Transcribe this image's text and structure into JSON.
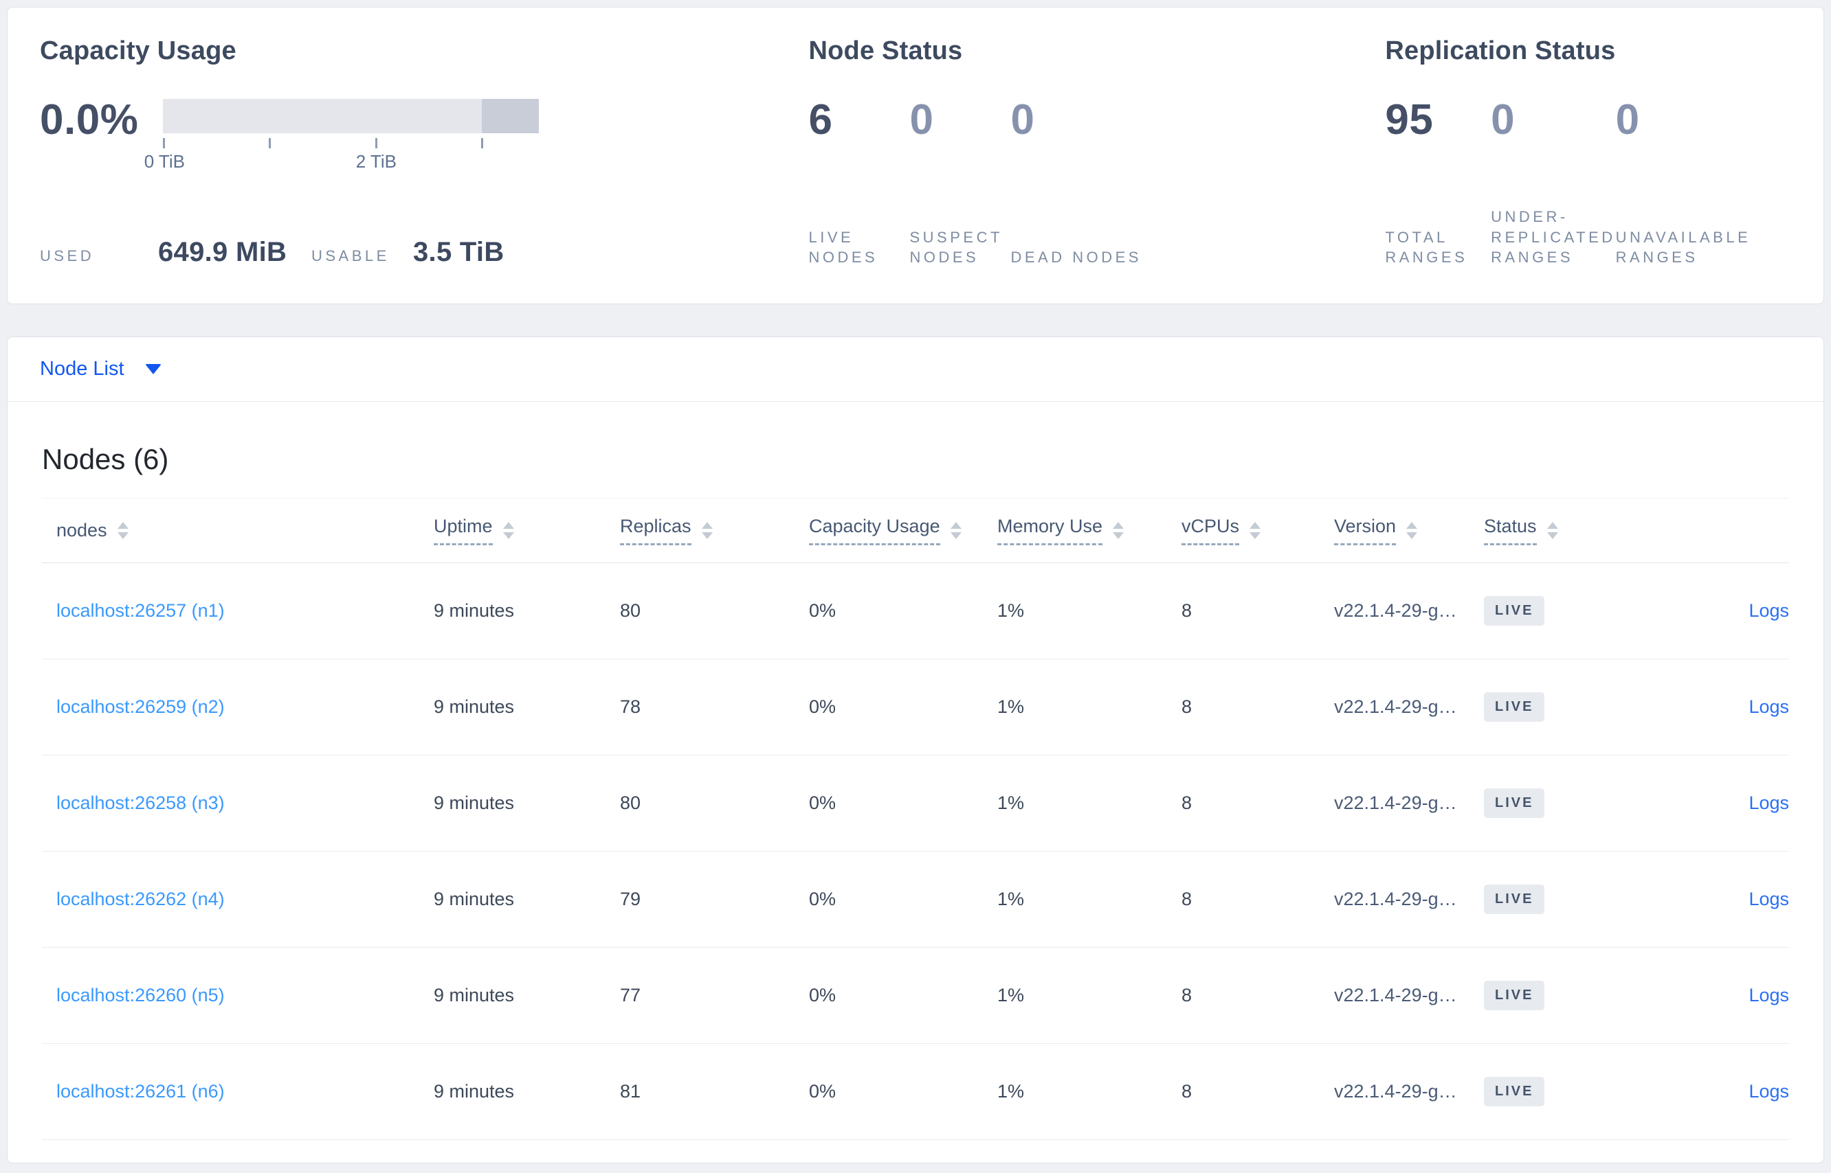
{
  "summary": {
    "capacity": {
      "title": "Capacity Usage",
      "percent": "0.0%",
      "tick_labels": [
        "0 TiB",
        "2 TiB"
      ],
      "used_label": "USED",
      "used_value": "649.9 MiB",
      "usable_label": "USABLE",
      "usable_value": "3.5 TiB"
    },
    "node_status": {
      "title": "Node Status",
      "items": [
        {
          "value": "6",
          "label": "LIVE NODES"
        },
        {
          "value": "0",
          "label": "SUSPECT NODES"
        },
        {
          "value": "0",
          "label": "DEAD NODES"
        }
      ]
    },
    "replication": {
      "title": "Replication Status",
      "items": [
        {
          "value": "95",
          "label": "TOTAL RANGES"
        },
        {
          "value": "0",
          "label": "UNDER-REPLICATED RANGES"
        },
        {
          "value": "0",
          "label": "UNAVAILABLE RANGES"
        }
      ]
    }
  },
  "view_selector": {
    "label": "Node List"
  },
  "nodes_table": {
    "title": "Nodes (6)",
    "columns": [
      {
        "label": "nodes",
        "tooltip": false
      },
      {
        "label": "Uptime",
        "tooltip": true
      },
      {
        "label": "Replicas",
        "tooltip": true
      },
      {
        "label": "Capacity Usage",
        "tooltip": true
      },
      {
        "label": "Memory Use",
        "tooltip": true
      },
      {
        "label": "vCPUs",
        "tooltip": true
      },
      {
        "label": "Version",
        "tooltip": true
      },
      {
        "label": "Status",
        "tooltip": true
      }
    ],
    "rows": [
      {
        "node": "localhost:26257 (n1)",
        "uptime": "9 minutes",
        "replicas": "80",
        "capacity": "0%",
        "memory": "1%",
        "vcpus": "8",
        "version": "v22.1.4-29-g…",
        "status": "LIVE",
        "logs": "Logs"
      },
      {
        "node": "localhost:26259 (n2)",
        "uptime": "9 minutes",
        "replicas": "78",
        "capacity": "0%",
        "memory": "1%",
        "vcpus": "8",
        "version": "v22.1.4-29-g…",
        "status": "LIVE",
        "logs": "Logs"
      },
      {
        "node": "localhost:26258 (n3)",
        "uptime": "9 minutes",
        "replicas": "80",
        "capacity": "0%",
        "memory": "1%",
        "vcpus": "8",
        "version": "v22.1.4-29-g…",
        "status": "LIVE",
        "logs": "Logs"
      },
      {
        "node": "localhost:26262 (n4)",
        "uptime": "9 minutes",
        "replicas": "79",
        "capacity": "0%",
        "memory": "1%",
        "vcpus": "8",
        "version": "v22.1.4-29-g…",
        "status": "LIVE",
        "logs": "Logs"
      },
      {
        "node": "localhost:26260 (n5)",
        "uptime": "9 minutes",
        "replicas": "77",
        "capacity": "0%",
        "memory": "1%",
        "vcpus": "8",
        "version": "v22.1.4-29-g…",
        "status": "LIVE",
        "logs": "Logs"
      },
      {
        "node": "localhost:26261 (n6)",
        "uptime": "9 minutes",
        "replicas": "81",
        "capacity": "0%",
        "memory": "1%",
        "vcpus": "8",
        "version": "v22.1.4-29-g…",
        "status": "LIVE",
        "logs": "Logs"
      }
    ]
  }
}
